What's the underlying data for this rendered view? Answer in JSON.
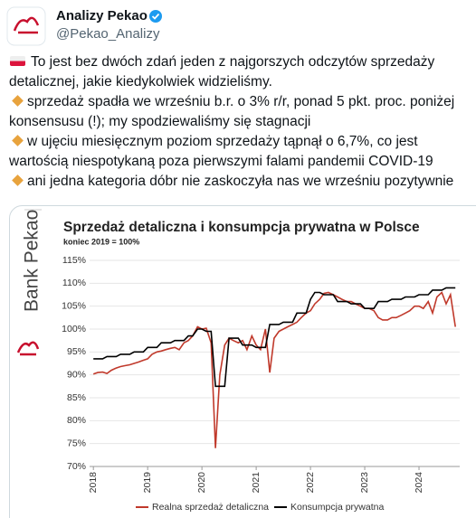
{
  "author": {
    "name": "Analizy Pekao",
    "handle": "@Pekao_Analizy"
  },
  "tweet": {
    "paragraphs": [
      "To jest bez dwóch zdań jeden z najgorszych odczytów sprzedaży detalicznej, jakie kiedykolwiek widzieliśmy.",
      "sprzedaż spadła we wrześniu b.r. o 3% r/r, ponad 5 pkt. proc. poniżej konsensusu (!); my spodziewaliśmy się stagnacji",
      "w ujęciu miesięcznym poziom sprzedaży tąpnął o 6,7%, co jest wartością niespotykaną poza pierwszymi falami pandemii COVID-19",
      "ani jedna kategoria dóbr nie zaskoczyła nas we wrześniu pozytywnie"
    ]
  },
  "brand": "Bank Pekao",
  "chart_data": {
    "type": "line",
    "title": "Sprzedaż detaliczna i konsumpcja prywatna w Polsce",
    "subtitle": "koniec 2019 = 100%",
    "x": [
      2018,
      2018.08,
      2018.17,
      2018.25,
      2018.33,
      2018.42,
      2018.5,
      2018.58,
      2018.67,
      2018.75,
      2018.83,
      2018.92,
      2019,
      2019.08,
      2019.17,
      2019.25,
      2019.33,
      2019.42,
      2019.5,
      2019.58,
      2019.67,
      2019.75,
      2019.83,
      2019.92,
      2020,
      2020.08,
      2020.17,
      2020.25,
      2020.33,
      2020.42,
      2020.5,
      2020.58,
      2020.67,
      2020.75,
      2020.83,
      2020.92,
      2021,
      2021.08,
      2021.17,
      2021.25,
      2021.33,
      2021.42,
      2021.5,
      2021.58,
      2021.67,
      2021.75,
      2021.83,
      2021.92,
      2022,
      2022.08,
      2022.17,
      2022.25,
      2022.33,
      2022.42,
      2022.5,
      2022.58,
      2022.67,
      2022.75,
      2022.83,
      2022.92,
      2023,
      2023.08,
      2023.17,
      2023.25,
      2023.33,
      2023.42,
      2023.5,
      2023.58,
      2023.67,
      2023.75,
      2023.83,
      2023.92,
      2024,
      2024.08,
      2024.17,
      2024.25,
      2024.33,
      2024.42,
      2024.5,
      2024.58,
      2024.67
    ],
    "series": [
      {
        "name": "Realna sprzedaż detaliczna",
        "color": "#c0392b",
        "values": [
          90.2,
          90.5,
          90.6,
          90.3,
          91,
          91.5,
          91.8,
          92,
          92.2,
          92.5,
          92.8,
          93.2,
          93.5,
          94.5,
          95,
          95.2,
          95.5,
          95.8,
          96,
          95.5,
          97,
          97.5,
          98.5,
          100.5,
          100,
          100.2,
          97,
          74,
          90,
          96.5,
          98,
          97.5,
          97,
          97.5,
          95.5,
          98.5,
          96.5,
          95.5,
          100,
          90.5,
          98,
          99.5,
          100,
          100.5,
          101,
          101.5,
          102.5,
          103.5,
          104,
          105.5,
          106.5,
          107.8,
          108,
          107.5,
          107,
          106.5,
          106,
          106,
          105.5,
          105,
          104.5,
          104.5,
          104,
          102.5,
          102,
          102,
          102.5,
          102.5,
          103,
          103.5,
          104,
          105,
          105,
          104.5,
          106,
          103.5,
          107,
          108,
          105.5,
          107.5,
          100.5
        ]
      },
      {
        "name": "Konsumpcja prywatna",
        "color": "#000000",
        "values": [
          93.5,
          93.5,
          93.5,
          94,
          94,
          94,
          94.5,
          94.5,
          94.5,
          95,
          95,
          95,
          96,
          96,
          96,
          97,
          97,
          97,
          97.5,
          97.5,
          97.5,
          98.5,
          98.5,
          100,
          100,
          99.5,
          99.5,
          87.5,
          87.5,
          87.5,
          98,
          98,
          98,
          96.5,
          96.5,
          96.5,
          96,
          96,
          96,
          101,
          101,
          101,
          101.5,
          101.5,
          101.5,
          103.5,
          103.5,
          103.5,
          106.5,
          108,
          108,
          107.5,
          107.5,
          107.5,
          106,
          106,
          106,
          105.5,
          105.5,
          105.5,
          104.5,
          104.5,
          104.5,
          106,
          106,
          106,
          106.5,
          106.5,
          106.5,
          107,
          107,
          107,
          107.5,
          107.5,
          107.5,
          108.5,
          108.5,
          108.5,
          109,
          109,
          109
        ]
      }
    ],
    "xlim": [
      2017.93,
      2024.75
    ],
    "xticks": [
      2018,
      2019,
      2020,
      2021,
      2022,
      2023,
      2024
    ],
    "ylim": [
      70,
      115
    ],
    "yticks": [
      {
        "value": 70,
        "label": "70%"
      },
      {
        "value": 75,
        "label": "75%"
      },
      {
        "value": 80,
        "label": "80%"
      },
      {
        "value": 85,
        "label": "85%"
      },
      {
        "value": 90,
        "label": "90%"
      },
      {
        "value": 95,
        "label": "95%"
      },
      {
        "value": 100,
        "label": "100%"
      },
      {
        "value": 105,
        "label": "105%"
      },
      {
        "value": 110,
        "label": "110%"
      },
      {
        "value": 115,
        "label": "115%"
      }
    ],
    "grid": true,
    "legend": "bottom"
  }
}
